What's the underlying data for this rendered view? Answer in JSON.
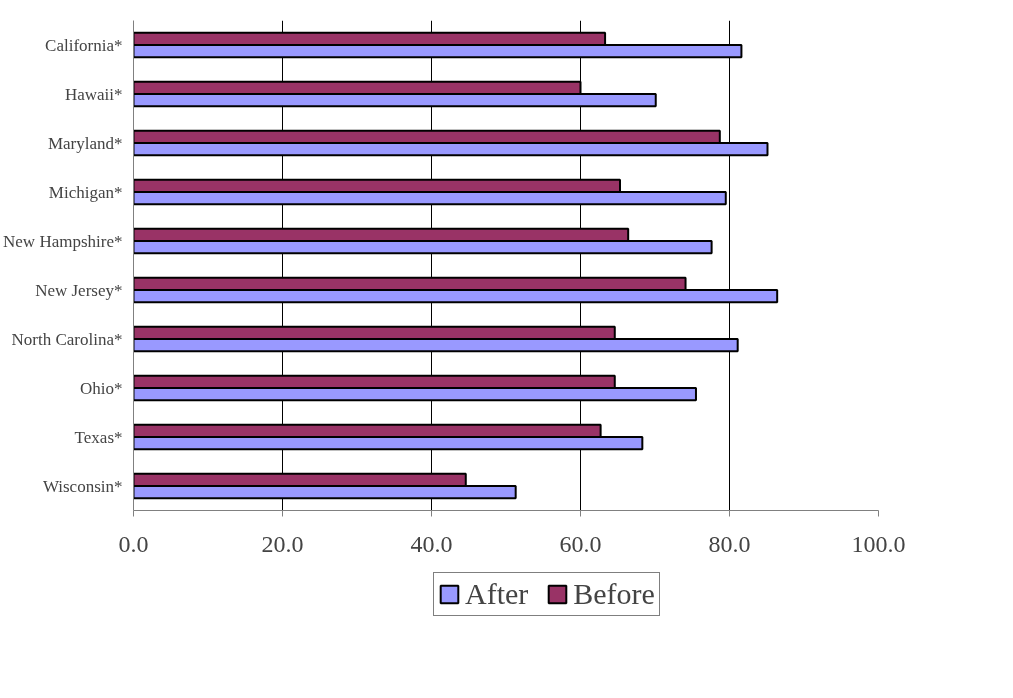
{
  "chart_data": {
    "type": "bar",
    "orientation": "horizontal",
    "categories": [
      "California*",
      "Hawaii*",
      "Maryland*",
      "Michigan*",
      "New Hampshire*",
      "New Jersey*",
      "North Carolina*",
      "Ohio*",
      "Texas*",
      "Wisconsin*"
    ],
    "series": [
      {
        "name": "After",
        "color": "#9999ff",
        "values": [
          81.6,
          70.1,
          85.1,
          79.5,
          77.6,
          86.4,
          81.1,
          75.5,
          68.3,
          51.3
        ]
      },
      {
        "name": "Before",
        "color": "#993366",
        "values": [
          63.3,
          60.0,
          78.7,
          65.3,
          66.4,
          74.1,
          64.6,
          64.6,
          62.7,
          44.6
        ]
      }
    ],
    "xlim": [
      0,
      100
    ],
    "xticks": [
      {
        "value": 0,
        "label": "0.0"
      },
      {
        "value": 20,
        "label": "20.0"
      },
      {
        "value": 40,
        "label": "40.0"
      },
      {
        "value": 60,
        "label": "60.0"
      },
      {
        "value": 80,
        "label": "80.0"
      },
      {
        "value": 100,
        "label": "100.0"
      }
    ],
    "grid": "x",
    "legend": "bottom"
  }
}
